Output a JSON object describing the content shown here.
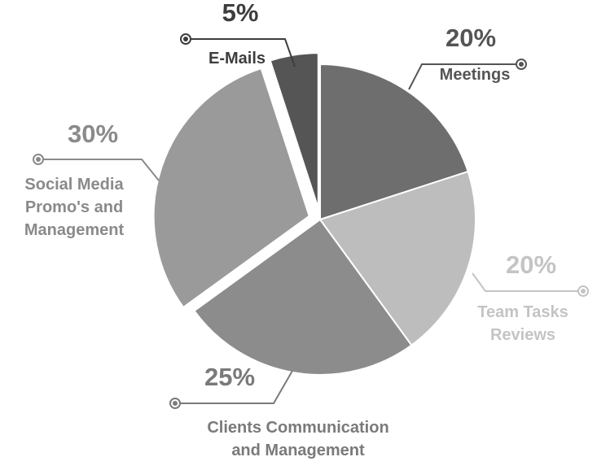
{
  "chart_data": {
    "type": "pie",
    "slices": [
      {
        "label_lines": [
          "Meetings"
        ],
        "percent_label": "20%",
        "value": 20,
        "color": "#6e6e6e",
        "text_color": "#555555",
        "exploded": false
      },
      {
        "label_lines": [
          "Team Tasks",
          "Reviews"
        ],
        "percent_label": "20%",
        "value": 20,
        "color": "#bdbdbd",
        "text_color": "#c4c4c4",
        "exploded": false
      },
      {
        "label_lines": [
          "Clients Communication",
          "and Management"
        ],
        "percent_label": "25%",
        "value": 25,
        "color": "#8c8c8c",
        "text_color": "#7a7a7a",
        "exploded": false
      },
      {
        "label_lines": [
          "Social Media",
          "Promo's and",
          "Management"
        ],
        "percent_label": "30%",
        "value": 30,
        "color": "#9a9a9a",
        "text_color": "#8a8a8a",
        "exploded": true
      },
      {
        "label_lines": [
          "E-Mails"
        ],
        "percent_label": "5%",
        "value": 5,
        "color": "#555555",
        "text_color": "#3d3d3d",
        "exploded": true
      }
    ]
  }
}
